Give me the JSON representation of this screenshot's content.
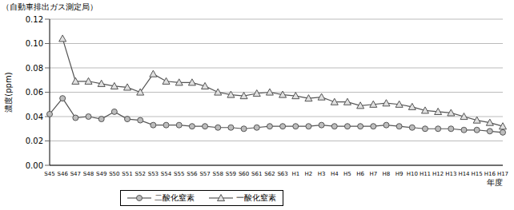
{
  "chart_data": {
    "type": "line",
    "title": "（自動車排出ガス測定局）",
    "y_label": "濃度(ppm)",
    "x_label": "年度",
    "categories": [
      "S45",
      "S46",
      "S47",
      "S48",
      "S49",
      "S50",
      "S51",
      "S52",
      "S53",
      "S54",
      "S55",
      "S56",
      "S57",
      "S58",
      "S59",
      "S60",
      "S61",
      "S62",
      "S63",
      "H1",
      "H2",
      "H3",
      "H4",
      "H5",
      "H6",
      "H7",
      "H8",
      "H9",
      "H10",
      "H11",
      "H12",
      "H13",
      "H14",
      "H15",
      "H16",
      "H17"
    ],
    "series": [
      {
        "name": "二酸化窒素",
        "color": "#555555",
        "marker": "circle",
        "values": [
          0.042,
          0.055,
          0.039,
          0.04,
          0.038,
          0.044,
          0.038,
          0.037,
          0.033,
          0.033,
          0.033,
          0.032,
          0.032,
          0.031,
          0.031,
          0.03,
          0.031,
          0.032,
          0.032,
          0.032,
          0.032,
          0.033,
          0.032,
          0.032,
          0.032,
          0.032,
          0.033,
          0.032,
          0.031,
          0.03,
          0.03,
          0.03,
          0.029,
          0.029,
          0.028,
          0.027
        ]
      },
      {
        "name": "一酸化窒素",
        "color": "#555555",
        "marker": "triangle",
        "values": [
          null,
          0.104,
          0.069,
          0.069,
          0.067,
          0.065,
          0.064,
          0.06,
          0.075,
          0.069,
          0.068,
          0.068,
          0.065,
          0.06,
          0.058,
          0.057,
          0.059,
          0.06,
          0.058,
          0.057,
          0.055,
          0.056,
          0.052,
          0.052,
          0.049,
          0.05,
          0.051,
          0.05,
          0.048,
          0.045,
          0.044,
          0.043,
          0.04,
          0.037,
          0.035,
          0.032
        ]
      }
    ],
    "ylim": [
      0,
      0.12
    ],
    "yticks": [
      {
        "value": 0,
        "label": "0.00"
      },
      {
        "value": 0.02,
        "label": "0.02"
      },
      {
        "value": 0.04,
        "label": "0.04"
      },
      {
        "value": 0.06,
        "label": "0.06"
      },
      {
        "value": 0.08,
        "label": "0.08"
      },
      {
        "value": 0.1,
        "label": "0.10"
      },
      {
        "value": 0.12,
        "label": "0.12"
      }
    ],
    "grid": true,
    "legend": "bottom"
  }
}
